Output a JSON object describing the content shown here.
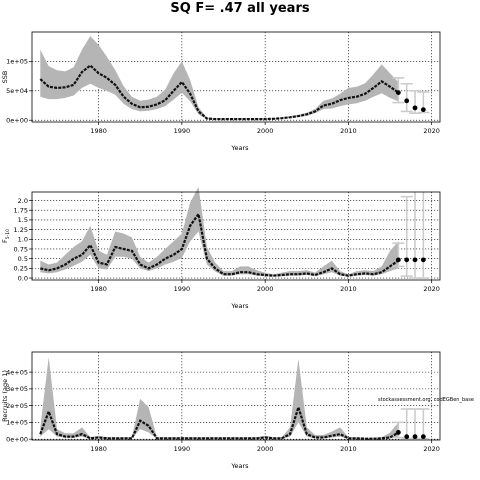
{
  "title": "SQ F= .47 all years",
  "annotation": "stockassessment.org, codEGBen_base",
  "colors": {
    "band": "#b5b5b5",
    "line": "#111111",
    "proj": "#cccccc",
    "point": "#000000",
    "grid": "#000000"
  },
  "chart_data": [
    {
      "type": "line",
      "ylabel": "SSB",
      "xlabel": "Years",
      "xlim": [
        1972,
        2021
      ],
      "ylim": [
        -3000,
        150000
      ],
      "xticks": [
        1980,
        1990,
        2000,
        2010,
        2020
      ],
      "xtick_labels": [
        "1980",
        "1990",
        "2000",
        "2010",
        "2020"
      ],
      "yticks": [
        0,
        50000,
        100000
      ],
      "ytick_labels": [
        "0e+00",
        "5e+04",
        "1e+05"
      ],
      "grid": true,
      "series": [
        {
          "x": [
            1973,
            1974,
            1975,
            1976,
            1977,
            1978,
            1979,
            1980,
            1981,
            1982,
            1983,
            1984,
            1985,
            1986,
            1987,
            1988,
            1989,
            1990,
            1991,
            1992,
            1993,
            1994,
            1995,
            1996,
            1997,
            1998,
            1999,
            2000,
            2001,
            2002,
            2003,
            2004,
            2005,
            2006,
            2007,
            2008,
            2009,
            2010,
            2011,
            2012,
            2013,
            2014,
            2015,
            2016
          ],
          "y": [
            70000,
            57000,
            55000,
            56000,
            60000,
            82000,
            93000,
            80000,
            72000,
            60000,
            40000,
            28000,
            22000,
            23000,
            27000,
            34000,
            50000,
            65000,
            45000,
            15000,
            3000,
            2000,
            2000,
            2000,
            2000,
            2000,
            2000,
            2000,
            2500,
            3500,
            5000,
            7000,
            10000,
            15000,
            25000,
            28000,
            34000,
            38000,
            40000,
            45000,
            55000,
            66000,
            57000,
            47000
          ],
          "lower": [
            40000,
            36000,
            36000,
            38000,
            42000,
            55000,
            62000,
            55000,
            50000,
            43000,
            28000,
            19000,
            15000,
            16000,
            19000,
            24000,
            35000,
            47000,
            32000,
            10000,
            2000,
            1500,
            1500,
            1500,
            1500,
            1500,
            1500,
            1500,
            2000,
            2800,
            4000,
            5500,
            8000,
            12000,
            19000,
            20000,
            24000,
            27000,
            29000,
            33000,
            40000,
            46000,
            38000,
            32000
          ],
          "upper": [
            120000,
            92000,
            85000,
            83000,
            90000,
            120000,
            143000,
            128000,
            108000,
            85000,
            58000,
            40000,
            33000,
            35000,
            40000,
            52000,
            80000,
            100000,
            68000,
            22000,
            4500,
            3000,
            3000,
            3000,
            3000,
            3000,
            3000,
            3000,
            3500,
            4500,
            6500,
            9000,
            13000,
            19000,
            33000,
            37000,
            45000,
            55000,
            57000,
            63000,
            78000,
            95000,
            80000,
            65000
          ]
        }
      ],
      "projection": {
        "x": [
          2016,
          2017,
          2018,
          2019
        ],
        "median": [
          47000,
          33000,
          21000,
          18000
        ],
        "lower": [
          30000,
          15000,
          12000,
          13000
        ],
        "upper": [
          72000,
          62000,
          50000,
          48000
        ]
      }
    },
    {
      "type": "line",
      "ylabel": "F",
      "ylabel_sub": "5-10",
      "xlabel": "Years",
      "xlim": [
        1972,
        2021
      ],
      "ylim": [
        -0.05,
        2.22
      ],
      "xticks": [
        1980,
        1990,
        2000,
        2010,
        2020
      ],
      "xtick_labels": [
        "1980",
        "1990",
        "2000",
        "2010",
        "2020"
      ],
      "yticks": [
        0.0,
        0.25,
        0.5,
        0.75,
        1.0,
        1.25,
        1.5,
        1.75,
        2.0
      ],
      "ytick_labels": [
        "0.0",
        "0.25",
        "0.5",
        "0.75",
        "1.0",
        "1.25",
        "1.5",
        "1.75",
        "2.0"
      ],
      "grid": true,
      "series": [
        {
          "x": [
            1973,
            1974,
            1975,
            1976,
            1977,
            1978,
            1979,
            1980,
            1981,
            1982,
            1983,
            1984,
            1985,
            1986,
            1987,
            1988,
            1989,
            1990,
            1991,
            1992,
            1993,
            1994,
            1995,
            1996,
            1997,
            1998,
            1999,
            2000,
            2001,
            2002,
            2003,
            2004,
            2005,
            2006,
            2007,
            2008,
            2009,
            2010,
            2011,
            2012,
            2013,
            2014,
            2015,
            2016
          ],
          "y": [
            0.25,
            0.2,
            0.25,
            0.35,
            0.5,
            0.6,
            0.85,
            0.4,
            0.35,
            0.8,
            0.75,
            0.7,
            0.35,
            0.25,
            0.35,
            0.5,
            0.6,
            0.75,
            1.35,
            1.65,
            0.5,
            0.25,
            0.1,
            0.1,
            0.15,
            0.15,
            0.1,
            0.08,
            0.06,
            0.08,
            0.1,
            0.1,
            0.12,
            0.08,
            0.15,
            0.25,
            0.1,
            0.06,
            0.1,
            0.12,
            0.1,
            0.15,
            0.3,
            0.45
          ],
          "lower": [
            0.15,
            0.12,
            0.15,
            0.22,
            0.32,
            0.42,
            0.6,
            0.25,
            0.22,
            0.55,
            0.55,
            0.5,
            0.25,
            0.18,
            0.25,
            0.35,
            0.42,
            0.52,
            0.95,
            1.2,
            0.35,
            0.17,
            0.06,
            0.06,
            0.1,
            0.1,
            0.06,
            0.05,
            0.04,
            0.05,
            0.06,
            0.06,
            0.08,
            0.05,
            0.1,
            0.15,
            0.06,
            0.04,
            0.06,
            0.08,
            0.06,
            0.1,
            0.18,
            0.25
          ],
          "upper": [
            0.45,
            0.35,
            0.4,
            0.6,
            0.8,
            0.95,
            1.35,
            0.7,
            0.6,
            1.2,
            1.15,
            1.05,
            0.55,
            0.4,
            0.55,
            0.75,
            0.95,
            1.15,
            1.95,
            2.35,
            0.8,
            0.4,
            0.18,
            0.18,
            0.3,
            0.3,
            0.2,
            0.14,
            0.1,
            0.14,
            0.18,
            0.18,
            0.2,
            0.14,
            0.3,
            0.45,
            0.18,
            0.1,
            0.18,
            0.2,
            0.18,
            0.3,
            0.7,
            0.95
          ]
        }
      ],
      "projection": {
        "x": [
          2016,
          2017,
          2018,
          2019
        ],
        "median": [
          0.47,
          0.47,
          0.47,
          0.47
        ],
        "lower": [
          0.3,
          0.05,
          0.0,
          0.0
        ],
        "upper": [
          0.9,
          2.1,
          2.3,
          2.3
        ]
      }
    },
    {
      "type": "line",
      "ylabel": "Recruits (age 1)",
      "xlabel": "Years",
      "xlim": [
        1972,
        2021
      ],
      "ylim": [
        -5000,
        520000
      ],
      "xticks": [
        1980,
        1990,
        2000,
        2010,
        2020
      ],
      "xtick_labels": [
        "1980",
        "1990",
        "2000",
        "2010",
        "2020"
      ],
      "yticks": [
        0,
        100000,
        200000,
        300000,
        400000
      ],
      "ytick_labels": [
        "0e+00",
        "1e+05",
        "2e+05",
        "3e+05",
        "4e+05"
      ],
      "grid": true,
      "series": [
        {
          "x": [
            1973,
            1974,
            1975,
            1976,
            1977,
            1978,
            1979,
            1980,
            1981,
            1982,
            1983,
            1984,
            1985,
            1986,
            1987,
            1988,
            1989,
            1990,
            1991,
            1992,
            1993,
            1994,
            1995,
            1996,
            1997,
            1998,
            1999,
            2000,
            2001,
            2002,
            2003,
            2004,
            2005,
            2006,
            2007,
            2008,
            2009,
            2010,
            2011,
            2012,
            2013,
            2014,
            2015,
            2016
          ],
          "y": [
            30000,
            165000,
            30000,
            15000,
            15000,
            30000,
            5000,
            10000,
            5000,
            5000,
            5000,
            5000,
            110000,
            80000,
            5000,
            5000,
            5000,
            5000,
            5000,
            5000,
            5000,
            5000,
            5000,
            5000,
            5000,
            5000,
            5000,
            10000,
            5000,
            5000,
            30000,
            190000,
            30000,
            10000,
            10000,
            20000,
            30000,
            5000,
            5000,
            3000,
            3000,
            5000,
            10000,
            40000
          ],
          "lower": [
            15000,
            60000,
            15000,
            8000,
            8000,
            15000,
            2000,
            5000,
            2000,
            2000,
            2000,
            2000,
            60000,
            40000,
            2000,
            2000,
            2000,
            2000,
            2000,
            2000,
            2000,
            2000,
            2000,
            2000,
            2000,
            2000,
            2000,
            5000,
            2000,
            2000,
            15000,
            100000,
            15000,
            5000,
            5000,
            10000,
            15000,
            2000,
            2000,
            1000,
            1000,
            2000,
            4000,
            12000
          ],
          "upper": [
            70000,
            490000,
            60000,
            35000,
            35000,
            70000,
            12000,
            20000,
            12000,
            12000,
            12000,
            12000,
            240000,
            190000,
            12000,
            12000,
            12000,
            12000,
            12000,
            12000,
            12000,
            12000,
            12000,
            12000,
            12000,
            12000,
            12000,
            20000,
            12000,
            12000,
            70000,
            480000,
            70000,
            25000,
            25000,
            45000,
            70000,
            12000,
            12000,
            8000,
            8000,
            12000,
            40000,
            100000
          ]
        }
      ],
      "projection": {
        "x": [
          2016,
          2017,
          2018,
          2019
        ],
        "median": [
          40000,
          15000,
          15000,
          15000
        ],
        "lower": [
          10000,
          3000,
          3000,
          3000
        ],
        "upper": [
          100000,
          180000,
          180000,
          180000
        ]
      }
    }
  ]
}
